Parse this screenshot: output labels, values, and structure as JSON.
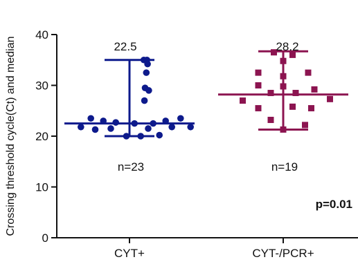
{
  "chart_data": {
    "type": "scatter",
    "ylabel": "Crossing threshold cycle(Ct) and median",
    "xlabel": "",
    "ylim": [
      0,
      40
    ],
    "yticks": [
      0,
      10,
      20,
      30,
      40
    ],
    "grid": false,
    "legend": "none",
    "categories": [
      "CYT+",
      "CYT-/PCR+"
    ],
    "series": [
      {
        "category": "CYT+",
        "marker": "circle",
        "color": "#0d1a8c",
        "median": 22.5,
        "median_label": "22.5",
        "range": [
          20.0,
          35.0
        ],
        "n_label": "n=23",
        "points": [
          {
            "x": 0.23,
            "y": 35.0
          },
          {
            "x": 0.28,
            "y": 35.0
          },
          {
            "x": 0.27,
            "y": 32.5
          },
          {
            "x": 0.29,
            "y": 34.2
          },
          {
            "x": 0.25,
            "y": 29.5
          },
          {
            "x": 0.31,
            "y": 29.0
          },
          {
            "x": 0.24,
            "y": 27.0
          },
          {
            "x": -0.62,
            "y": 23.5
          },
          {
            "x": -0.42,
            "y": 23.0
          },
          {
            "x": -0.22,
            "y": 22.7
          },
          {
            "x": 0.08,
            "y": 22.5
          },
          {
            "x": 0.38,
            "y": 22.5
          },
          {
            "x": 0.58,
            "y": 23.0
          },
          {
            "x": 0.82,
            "y": 23.5
          },
          {
            "x": -0.78,
            "y": 21.8
          },
          {
            "x": -0.55,
            "y": 21.3
          },
          {
            "x": -0.3,
            "y": 21.5
          },
          {
            "x": 0.3,
            "y": 21.5
          },
          {
            "x": 0.68,
            "y": 21.8
          },
          {
            "x": 0.98,
            "y": 21.8
          },
          {
            "x": -0.05,
            "y": 20.0
          },
          {
            "x": 0.18,
            "y": 20.0
          },
          {
            "x": 0.48,
            "y": 20.2
          }
        ]
      },
      {
        "category": "CYT-/PCR+",
        "marker": "square",
        "color": "#8c1450",
        "median": 28.2,
        "median_label": "28.2",
        "range": [
          21.3,
          36.7
        ],
        "n_label": "n=19",
        "points": [
          {
            "x": -0.15,
            "y": 36.5
          },
          {
            "x": 0.15,
            "y": 36.0
          },
          {
            "x": 0.0,
            "y": 34.8
          },
          {
            "x": -0.4,
            "y": 32.5
          },
          {
            "x": 0.4,
            "y": 32.5
          },
          {
            "x": 0.0,
            "y": 31.8
          },
          {
            "x": -0.4,
            "y": 30.0
          },
          {
            "x": 0.0,
            "y": 29.8
          },
          {
            "x": 0.5,
            "y": 29.2
          },
          {
            "x": -0.2,
            "y": 28.5
          },
          {
            "x": 0.2,
            "y": 28.5
          },
          {
            "x": -0.65,
            "y": 27.0
          },
          {
            "x": 0.75,
            "y": 27.3
          },
          {
            "x": -0.4,
            "y": 25.5
          },
          {
            "x": 0.15,
            "y": 25.8
          },
          {
            "x": 0.45,
            "y": 25.5
          },
          {
            "x": -0.2,
            "y": 23.2
          },
          {
            "x": 0.35,
            "y": 22.2
          },
          {
            "x": 0.0,
            "y": 21.3
          }
        ]
      }
    ],
    "annotations": [
      {
        "text": "p=0.01",
        "position": "bottom-right"
      }
    ]
  }
}
